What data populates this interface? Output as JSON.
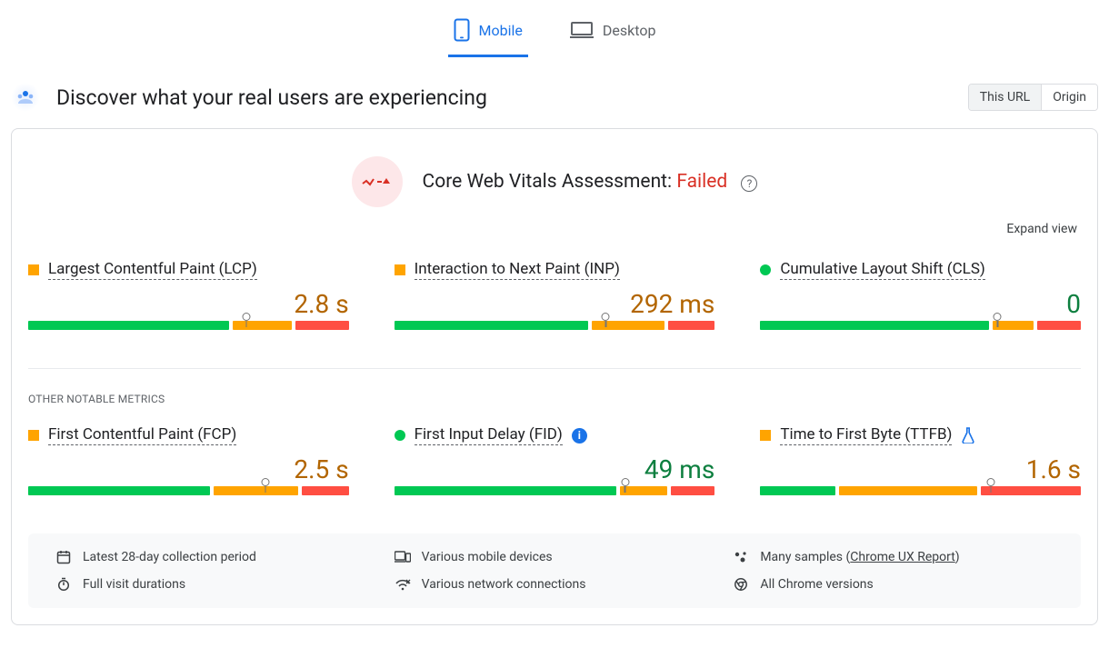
{
  "colors": {
    "green": "#00c853",
    "orange": "#ffa400",
    "red": "#ff4e42",
    "accent_blue": "#1a73e8",
    "fail_red": "#d93025",
    "text": "#202124",
    "muted": "#5f6368",
    "value_orange": "#b26500",
    "value_green": "#0d7f3f"
  },
  "tabs": {
    "mobile": "Mobile",
    "desktop": "Desktop",
    "active": "mobile"
  },
  "header": {
    "title": "Discover what your real users are experiencing",
    "toggle": {
      "this_url": "This URL",
      "origin": "Origin",
      "active": "this_url"
    }
  },
  "assessment": {
    "label": "Core Web Vitals Assessment:",
    "status": "Failed",
    "expand": "Expand view"
  },
  "section_other_label": "OTHER NOTABLE METRICS",
  "metrics": {
    "lcp": {
      "name": "Largest Contentful Paint (LCP)",
      "value": "2.8 s",
      "value_color": "value_orange",
      "marker": {
        "shape": "square",
        "color": "#ffa400"
      },
      "segments": [
        {
          "w": 64,
          "c": "#00c853"
        },
        {
          "w": 19,
          "c": "#ffa400"
        },
        {
          "w": 17,
          "c": "#ff4e42"
        }
      ],
      "pin_pct": 68
    },
    "inp": {
      "name": "Interaction to Next Paint (INP)",
      "value": "292 ms",
      "value_color": "value_orange",
      "marker": {
        "shape": "square",
        "color": "#ffa400"
      },
      "segments": [
        {
          "w": 62,
          "c": "#00c853"
        },
        {
          "w": 23,
          "c": "#ffa400"
        },
        {
          "w": 15,
          "c": "#ff4e42"
        }
      ],
      "pin_pct": 66
    },
    "cls": {
      "name": "Cumulative Layout Shift (CLS)",
      "value": "0",
      "value_color": "value_green",
      "marker": {
        "shape": "circle",
        "color": "#00c853"
      },
      "segments": [
        {
          "w": 73,
          "c": "#00c853"
        },
        {
          "w": 13,
          "c": "#ffa400"
        },
        {
          "w": 14,
          "c": "#ff4e42"
        }
      ],
      "pin_pct": 74
    },
    "fcp": {
      "name": "First Contentful Paint (FCP)",
      "value": "2.5 s",
      "value_color": "value_orange",
      "marker": {
        "shape": "square",
        "color": "#ffa400"
      },
      "segments": [
        {
          "w": 58,
          "c": "#00c853"
        },
        {
          "w": 27,
          "c": "#ffa400"
        },
        {
          "w": 15,
          "c": "#ff4e42"
        }
      ],
      "pin_pct": 74
    },
    "fid": {
      "name": "First Input Delay (FID)",
      "value": "49 ms",
      "value_color": "value_green",
      "marker": {
        "shape": "circle",
        "color": "#00c853"
      },
      "extra_icon": "info",
      "segments": [
        {
          "w": 71,
          "c": "#00c853"
        },
        {
          "w": 15,
          "c": "#ffa400"
        },
        {
          "w": 14,
          "c": "#ff4e42"
        }
      ],
      "pin_pct": 72
    },
    "ttfb": {
      "name": "Time to First Byte (TTFB)",
      "value": "1.6 s",
      "value_color": "value_orange",
      "marker": {
        "shape": "square",
        "color": "#ffa400"
      },
      "extra_icon": "flask",
      "segments": [
        {
          "w": 24,
          "c": "#00c853"
        },
        {
          "w": 44,
          "c": "#ffa400"
        },
        {
          "w": 32,
          "c": "#ff4e42"
        }
      ],
      "pin_pct": 72
    }
  },
  "footer": {
    "collection": "Latest 28-day collection period",
    "devices": "Various mobile devices",
    "samples_prefix": "Many samples (",
    "samples_link": "Chrome UX Report",
    "samples_suffix": ")",
    "durations": "Full visit durations",
    "networks": "Various network connections",
    "versions": "All Chrome versions"
  }
}
